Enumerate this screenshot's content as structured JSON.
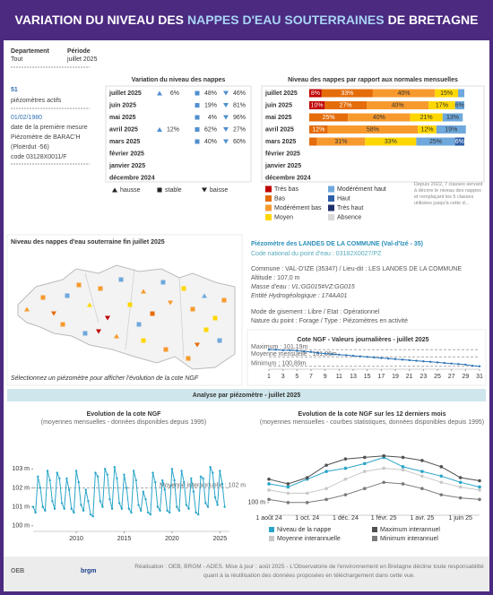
{
  "header": {
    "title_parts": [
      "VARIATION DU NIVEAU DES",
      "NAPPES D'EAU SOUTERRAINES",
      "DE BRETAGNE"
    ]
  },
  "filters": [
    {
      "label": "Departement",
      "value": "Tout"
    },
    {
      "label": "Période",
      "value": "juillet 2025"
    }
  ],
  "kpi": {
    "count": "51",
    "count_label": "piézomètres actifs",
    "first_date": "01/02/1980",
    "first_date_label": "date de la première mesure",
    "piezometer": "Piézomètre de BARAC'H",
    "place": "(Ploërdut -56)",
    "code": "code 03128X0011/F"
  },
  "variation_table": {
    "title": "Variation du niveau des nappes",
    "months": [
      "juillet 2025",
      "juin 2025",
      "mai 2025",
      "avril 2025",
      "mars 2025",
      "février 2025",
      "janvier 2025",
      "décembre 2024"
    ],
    "rows": [
      [
        "6%",
        "48%",
        "46%"
      ],
      [
        null,
        "19%",
        "81%"
      ],
      [
        null,
        "4%",
        "96%"
      ],
      [
        "12%",
        "62%",
        "27%"
      ],
      [
        null,
        "40%",
        "60%"
      ]
    ],
    "legend": [
      "hausse",
      "stable",
      "baisse"
    ]
  },
  "map": {
    "title": "Niveau des nappes d'eau souterraine fin juillet 2025",
    "caption": "Sélectionnez un piézomètre pour afficher l'évolution de la cote NGF"
  },
  "station": {
    "title": "Piézomètre des LANDES DE LA COMMUNE (Val-d'Izé - 35)",
    "code": "Code national du point d'eau : 03182X0027/PZ",
    "lines": [
      "Commune : VAL-D'IZE (35347) / Lieu-dit : LES LANDES DE LA COMMUNE",
      "Altitude : 107,0 m",
      "Masse d'eau : VL:GG015#VZ:GG015",
      "Entité Hydrogéologique : 174AA01",
      "Mode de gisement : Libre / Etat : Opérationnel",
      "Nature du point : Forage / Type : Piézomètres en activité"
    ]
  },
  "section_banner": "Analyse par piézomètre - juillet 2025",
  "note": "Depuis 2022, 7 classes servant à décrire le niveau des nappes et remplaçant les 5 classes utilisées jusqu'à cette d...",
  "chart_data": [
    {
      "type": "bar",
      "title": "Niveau des nappes par rapport aux normales mensuelles",
      "categories": [
        "juillet 2025",
        "juin 2025",
        "mai 2025",
        "avril 2025",
        "mars 2025",
        "février 2025",
        "janvier 2025",
        "décembre 2024"
      ],
      "series": [
        {
          "name": "Très bas",
          "color": "#c00000",
          "values": [
            8,
            10,
            null,
            null,
            null,
            null,
            null,
            null
          ],
          "value_labels": [
            "8%",
            "10%",
            null,
            null,
            null,
            null,
            null,
            null
          ]
        },
        {
          "name": "Bas",
          "color": "#e46c0a",
          "values": [
            33,
            27,
            25,
            12,
            5,
            null,
            null,
            null
          ],
          "value_labels": [
            "33%",
            "27%",
            "25%",
            "12%",
            null,
            null,
            null,
            null
          ]
        },
        {
          "name": "Modérément bas",
          "color": "#f79a2e",
          "values": [
            40,
            40,
            40,
            58,
            31,
            null,
            null,
            null
          ],
          "value_labels": [
            "40%",
            "40%",
            "40%",
            "58%",
            "31%",
            null,
            null,
            null
          ]
        },
        {
          "name": "Moyen",
          "color": "#ffd700",
          "values": [
            15,
            17,
            21,
            12,
            33,
            null,
            null,
            null
          ],
          "value_labels": [
            "15%",
            "17%",
            "21%",
            "12%",
            "33%",
            null,
            null,
            null
          ]
        },
        {
          "name": "Modérément haut",
          "color": "#6fa8dc",
          "values": [
            4,
            6,
            13,
            19,
            25,
            null,
            null,
            null
          ],
          "value_labels": [
            null,
            "6%",
            "13%",
            "19%",
            "25%",
            null,
            null,
            null
          ]
        },
        {
          "name": "Haut",
          "color": "#2e5fa8",
          "values": [
            null,
            null,
            null,
            null,
            6,
            null,
            null,
            null
          ],
          "value_labels": [
            null,
            null,
            null,
            null,
            "6%",
            null,
            null,
            null
          ]
        },
        {
          "name": "Très haut",
          "color": "#1f2f6b",
          "values": [
            null,
            null,
            null,
            null,
            null,
            null,
            null,
            null
          ]
        },
        {
          "name": "Absence",
          "color": "#d9d9d9",
          "values": [
            null,
            null,
            null,
            null,
            null,
            null,
            null,
            null
          ]
        }
      ]
    },
    {
      "type": "line",
      "title": "Cote NGF - Valeurs journalières - juillet 2025",
      "color": "#2e75b6",
      "markers": true,
      "x": [
        1,
        2,
        3,
        4,
        5,
        6,
        7,
        8,
        9,
        10,
        11,
        12,
        13,
        14,
        15,
        16,
        17,
        18,
        19,
        20,
        21,
        22,
        23,
        24,
        25,
        26,
        27,
        28,
        29,
        30,
        31
      ],
      "values": [
        101.19,
        101.19,
        101.18,
        101.18,
        101.17,
        101.16,
        101.15,
        101.13,
        101.12,
        101.11,
        101.1,
        101.09,
        101.08,
        101.07,
        101.06,
        101.05,
        101.04,
        101.03,
        101.02,
        101.01,
        101.0,
        100.99,
        100.98,
        100.97,
        100.96,
        100.95,
        100.94,
        100.93,
        100.92,
        100.9,
        100.89
      ],
      "xlim": [
        1,
        31
      ],
      "xticks": [
        1,
        3,
        5,
        7,
        9,
        11,
        13,
        15,
        17,
        19,
        21,
        23,
        25,
        27,
        29,
        31
      ],
      "ylim": [
        100.87,
        101.21
      ],
      "reference_lines": [
        {
          "value": 101.19,
          "label": "Maximum : 101,19m"
        },
        {
          "value": 101.06,
          "label": "Moyenne mensuelle : 101,06m"
        },
        {
          "value": 100.89,
          "label": "Minimum : 100,89m"
        }
      ]
    },
    {
      "type": "line",
      "title": "Evolution de la cote NGF",
      "subtitle": "(moyennes mensuelles - données disponibles depuis 1995)",
      "color": "#2aa5c8",
      "markers": true,
      "x": [
        2005.5,
        2005.75,
        2006,
        2006.25,
        2006.5,
        2006.75,
        2007,
        2007.25,
        2007.5,
        2007.75,
        2008,
        2008.25,
        2008.5,
        2008.75,
        2009,
        2009.25,
        2009.5,
        2009.75,
        2010,
        2010.25,
        2010.5,
        2010.75,
        2011,
        2011.25,
        2011.5,
        2011.75,
        2012,
        2012.25,
        2012.5,
        2012.75,
        2013,
        2013.25,
        2013.5,
        2013.75,
        2014,
        2014.25,
        2014.5,
        2014.75,
        2015,
        2015.25,
        2015.5,
        2015.75,
        2016,
        2016.25,
        2016.5,
        2016.75,
        2017,
        2017.25,
        2017.5,
        2017.75,
        2018,
        2018.25,
        2018.5,
        2018.75,
        2019,
        2019.25,
        2019.5,
        2019.75,
        2020,
        2020.25,
        2020.5,
        2020.75,
        2021,
        2021.25,
        2021.5,
        2021.75,
        2022,
        2022.25,
        2022.5,
        2022.75,
        2023,
        2023.25,
        2023.5,
        2023.75,
        2024,
        2024.25,
        2024.5,
        2024.75,
        2025,
        2025.25,
        2025.5
      ],
      "values": [
        101.0,
        100.7,
        102.6,
        102.0,
        101.0,
        100.8,
        102.9,
        102.4,
        101.3,
        100.9,
        102.8,
        102.5,
        101.2,
        100.9,
        102.5,
        101.9,
        100.9,
        100.7,
        102.9,
        102.3,
        101.1,
        100.8,
        101.9,
        101.3,
        100.6,
        100.5,
        102.8,
        102.6,
        101.3,
        101.0,
        103.0,
        102.7,
        101.4,
        100.9,
        103.1,
        102.5,
        101.2,
        100.9,
        102.7,
        102.0,
        100.9,
        100.7,
        102.9,
        102.4,
        101.1,
        100.8,
        101.8,
        101.4,
        100.7,
        100.6,
        102.8,
        102.3,
        101.0,
        100.8,
        102.4,
        101.9,
        100.8,
        100.7,
        103.0,
        102.4,
        101.0,
        100.8,
        102.9,
        102.3,
        101.1,
        100.9,
        102.5,
        101.8,
        100.7,
        100.6,
        102.6,
        102.5,
        101.2,
        101.0,
        103.1,
        102.8,
        101.5,
        101.1,
        102.9,
        102.2,
        101.0
      ],
      "xlim": [
        2005.5,
        2026
      ],
      "xticks": [
        2010,
        2015,
        2020,
        2025
      ],
      "ylim": [
        99.8,
        103.3
      ],
      "yticks": [
        {
          "value": 100,
          "label": "100 m"
        },
        {
          "value": 101,
          "label": "101 m"
        },
        {
          "value": 102,
          "label": "102 m"
        },
        {
          "value": 103,
          "label": "103 m"
        }
      ],
      "reference_lines": [
        {
          "value": 102,
          "label": "Moyenne interannuelle : 102 m"
        }
      ]
    },
    {
      "type": "line",
      "title": "Evolution de la cote NGF sur les 12 derniers mois",
      "subtitle": "(moyennes mensuelles - courbes statistiques, données disponibles depuis 1995)",
      "markers": true,
      "categories": [
        "1 août 24",
        null,
        "1 oct. 24",
        null,
        "1 déc. 24",
        null,
        "1 févr. 25",
        null,
        "1 avr. 25",
        null,
        "1 juin 25",
        null
      ],
      "series": [
        {
          "name": "Niveau de la nappe",
          "color": "#2aa5c8",
          "values": [
            101.2,
            101.0,
            101.5,
            102.0,
            102.2,
            102.5,
            102.9,
            102.3,
            102.0,
            101.7,
            101.3,
            101.0
          ]
        },
        {
          "name": "Moyenne interannuelle",
          "color": "#c8c8c8",
          "values": [
            100.8,
            100.6,
            100.6,
            100.9,
            101.5,
            102.0,
            102.2,
            102.1,
            101.7,
            101.3,
            101.0,
            100.8
          ]
        },
        {
          "name": "Maximum interannuel",
          "color": "#505050",
          "values": [
            101.5,
            101.2,
            101.6,
            102.4,
            102.8,
            102.9,
            103.0,
            102.9,
            102.7,
            102.3,
            101.6,
            101.4
          ]
        },
        {
          "name": "Minimum interannuel",
          "color": "#7a7a7a",
          "values": [
            100.2,
            100.0,
            100.0,
            100.2,
            100.5,
            100.9,
            101.3,
            101.2,
            100.9,
            100.5,
            100.3,
            100.2
          ]
        }
      ],
      "ylim": [
        99.3,
        103.5
      ],
      "yticks": [
        {
          "value": 100,
          "label": "100 m"
        }
      ]
    }
  ],
  "footer": {
    "logos": [
      "OEB",
      "brgm"
    ],
    "text": "Réalisation : OEB, BRGM - ADES. Mise à jour : août 2025 - L'Observatoire de l'environnement en Bretagne décline toute responsabilité quant à la réutilisation des données proposées en téléchargement dans cette vue."
  }
}
